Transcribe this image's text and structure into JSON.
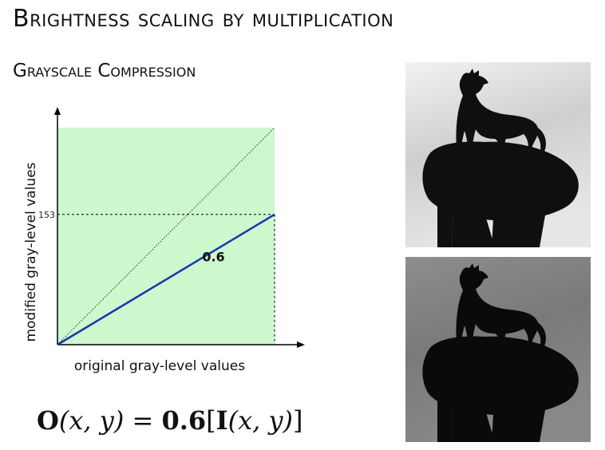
{
  "slide": {
    "title": "Brightness scaling by multiplication",
    "subtitle": "Grayscale Compression"
  },
  "chart_data": {
    "type": "line",
    "xlabel": "original gray-level values",
    "ylabel": "modified gray-level values",
    "xlim": [
      0,
      255
    ],
    "ylim": [
      0,
      255
    ],
    "series": [
      {
        "x": [
          0,
          255
        ],
        "y": [
          0,
          153
        ],
        "style": "solid",
        "color": "#1a33b0"
      },
      {
        "x": [
          0,
          255
        ],
        "y": [
          0,
          255
        ],
        "style": "dotted",
        "color": "#333333"
      }
    ],
    "reference_level": 153,
    "annotation": "0.6",
    "shaded_region_color": "#cdf7cd",
    "ytick_labels": [
      "153"
    ]
  },
  "formula": {
    "lhs_bold": "O",
    "lhs_args": "(x, y)",
    "eq": " = ",
    "coef": "0.6",
    "rhs_bold": "I",
    "rhs_args": "(x, y)"
  },
  "images": {
    "top": "original-dog-photo",
    "bottom": "darkened-dog-photo"
  }
}
